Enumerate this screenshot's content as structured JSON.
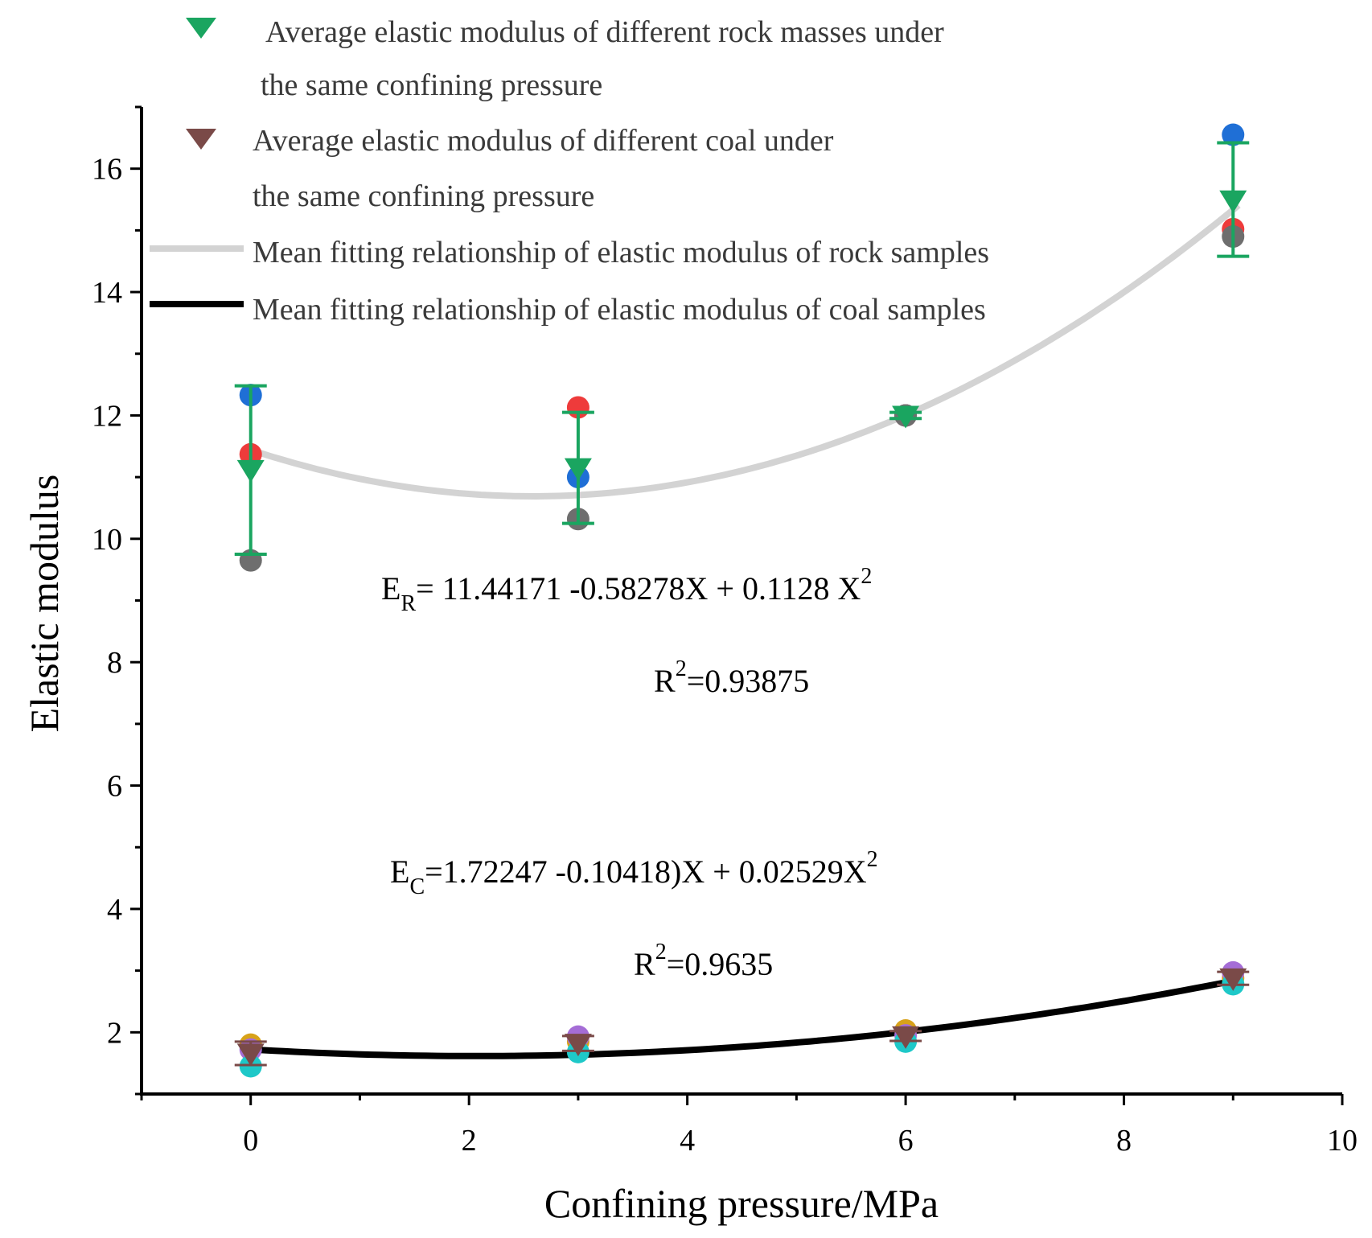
{
  "chart_data": {
    "type": "scatter",
    "title": "",
    "xlabel": "Confining pressure/MPa",
    "ylabel": "Elastic modulus",
    "xlim": [
      -1,
      10
    ],
    "ylim": [
      1,
      17
    ],
    "xticks": [
      0,
      2,
      4,
      6,
      8,
      10
    ],
    "yticks": [
      2,
      4,
      6,
      8,
      10,
      12,
      14,
      16
    ],
    "grid": false,
    "legend_position": "top-left",
    "colors": {
      "rock_mean": "#1aa560",
      "coal_mean": "#7a4a48",
      "rock_fit": "#d3d3d3",
      "coal_fit": "#000000"
    },
    "rock_samples": [
      {
        "name": "rock-1",
        "color": "#1f6fd6",
        "x": [
          0,
          3,
          6,
          9
        ],
        "y": [
          12.33,
          11.0,
          12.0,
          16.55
        ]
      },
      {
        "name": "rock-2",
        "color": "#ee3b3b",
        "x": [
          0,
          3,
          6,
          9
        ],
        "y": [
          11.37,
          12.13,
          12.0,
          15.02
        ]
      },
      {
        "name": "rock-3",
        "color": "#6e6e6e",
        "x": [
          0,
          3,
          6,
          9
        ],
        "y": [
          9.65,
          10.32,
          12.0,
          14.9
        ]
      }
    ],
    "coal_samples": [
      {
        "name": "coal-1",
        "color": "#d8a21a",
        "x": [
          0,
          3,
          6,
          9
        ],
        "y": [
          1.8,
          1.85,
          2.03,
          2.88
        ]
      },
      {
        "name": "coal-2",
        "color": "#a56dd6",
        "x": [
          0,
          3,
          6,
          9
        ],
        "y": [
          1.72,
          1.93,
          1.95,
          2.97
        ]
      },
      {
        "name": "coal-3",
        "color": "#1ec8c8",
        "x": [
          0,
          3,
          6,
          9
        ],
        "y": [
          1.45,
          1.68,
          1.85,
          2.78
        ]
      }
    ],
    "rock_mean": {
      "x": [
        0,
        3,
        6,
        9
      ],
      "y": [
        11.12,
        11.15,
        12.0,
        15.49
      ],
      "err_low": [
        9.75,
        10.25,
        11.95,
        14.58
      ],
      "err_high": [
        12.48,
        12.05,
        12.05,
        16.42
      ]
    },
    "coal_mean": {
      "x": [
        0,
        3,
        6,
        9
      ],
      "y": [
        1.66,
        1.82,
        1.94,
        2.88
      ],
      "err_low": [
        1.47,
        1.7,
        1.86,
        2.77
      ],
      "err_high": [
        1.85,
        1.94,
        2.02,
        2.98
      ]
    },
    "fits": {
      "rock": {
        "c0": 11.44171,
        "c1": -0.58278,
        "c2": 0.1128,
        "x_range": [
          0,
          9.05
        ]
      },
      "coal": {
        "c0": 1.72247,
        "c1": -0.10418,
        "c2": 0.02529,
        "x_range": [
          0,
          9.05
        ]
      }
    },
    "legend": [
      {
        "label_line1": "Average elastic modulus of different rock masses under",
        "label_line2": "the same confining pressure",
        "marker": "triangle-down-green"
      },
      {
        "label_line1": "Average elastic modulus of different coal under",
        "label_line2": "the same confining pressure",
        "marker": "triangle-down-brown"
      },
      {
        "label_line1": "Mean fitting relationship of elastic modulus of rock samples",
        "marker": "line-gray"
      },
      {
        "label_line1": "Mean fitting relationship of elastic modulus of coal samples",
        "marker": "line-black"
      }
    ],
    "annotations": {
      "rock_eq": {
        "prefix": "E",
        "sub": "R",
        "body": "= 11.44171 -0.58278X + 0.1128 X",
        "sup": "2"
      },
      "rock_r2": {
        "prefix": "R",
        "sup": "2",
        "body": "=0.93875"
      },
      "coal_eq": {
        "prefix": "E",
        "sub": "C",
        "body": "=1.72247 -0.10418)X + 0.02529X",
        "sup": "2"
      },
      "coal_r2": {
        "prefix": "R",
        "sup": "2",
        "body": "=0.9635"
      }
    }
  }
}
